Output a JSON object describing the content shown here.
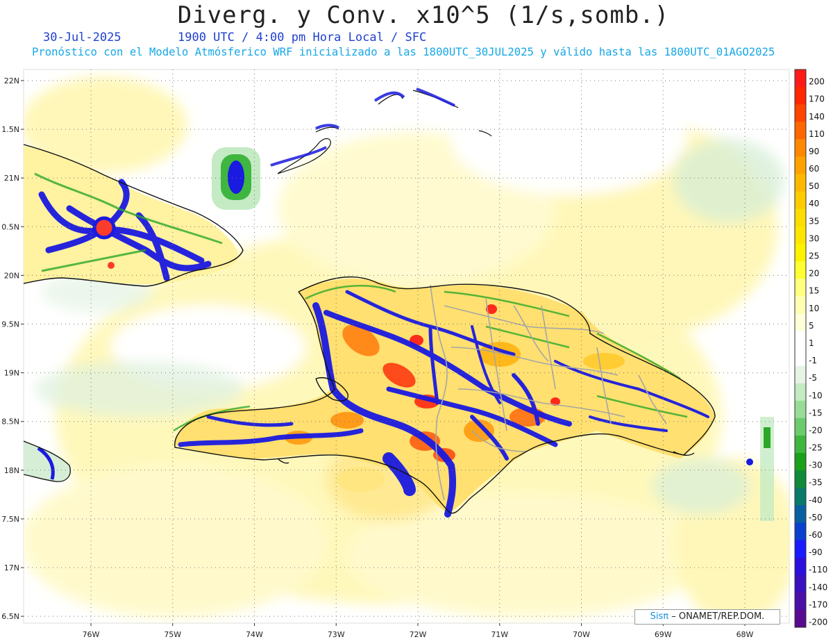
{
  "header": {
    "title": "Diverg. y Conv. x10^5 (1/s,somb.)",
    "date": "30-Jul-2025",
    "time": "1900 UTC / 4:00 pm Hora Local / SFC",
    "subtitle": "Pronóstico con el Modelo Atmósferico WRF inicializado a las 1800UTC_30JUL2025 y válido hasta las  1800UTC_01AGO2025"
  },
  "axes": {
    "lat_labels": [
      "22N",
      "1.5N",
      "21N",
      "0.5N",
      "20N",
      "9.5N",
      "19N",
      "8.5N",
      "18N",
      "7.5N",
      "17N",
      "6.5N"
    ],
    "lon_labels": [
      "76W",
      "75W",
      "74W",
      "73W",
      "72W",
      "71W",
      "70W",
      "69W",
      "68W"
    ]
  },
  "colorbar": {
    "labels": [
      "200",
      "170",
      "140",
      "110",
      "90",
      "60",
      "50",
      "40",
      "35",
      "30",
      "25",
      "20",
      "15",
      "10",
      "5",
      "1",
      "-1",
      "-5",
      "-10",
      "-15",
      "-20",
      "-25",
      "-30",
      "-35",
      "-40",
      "-50",
      "-60",
      "-90",
      "-110",
      "-140",
      "-170",
      "-200"
    ],
    "colors": [
      "#ff1a1a",
      "#ff2600",
      "#ff4400",
      "#ff6600",
      "#ff8800",
      "#ffa200",
      "#ffb800",
      "#ffcc00",
      "#ffdd00",
      "#ffe600",
      "#fff200",
      "#ffff33",
      "#ffff80",
      "#ffffb3",
      "#ffffd9",
      "#ffffff",
      "#ffffff",
      "#e6f4e6",
      "#c4ebc4",
      "#98dc98",
      "#6ccb6c",
      "#3fb63f",
      "#1aa01a",
      "#0f8a3a",
      "#0a7a6a",
      "#0a5fa0",
      "#0a3fd0",
      "#1a1aff",
      "#2a10dd",
      "#3a10c0",
      "#4a10a8",
      "#5a0a90"
    ]
  },
  "credit": {
    "brand": "Sisπ",
    "org": "– ONAMET/REP.DOM."
  },
  "colors": {
    "coast": "#111111",
    "borders": "#a6a6a6",
    "convergence": "#1a1ae0",
    "divergence": "#ffee66"
  }
}
